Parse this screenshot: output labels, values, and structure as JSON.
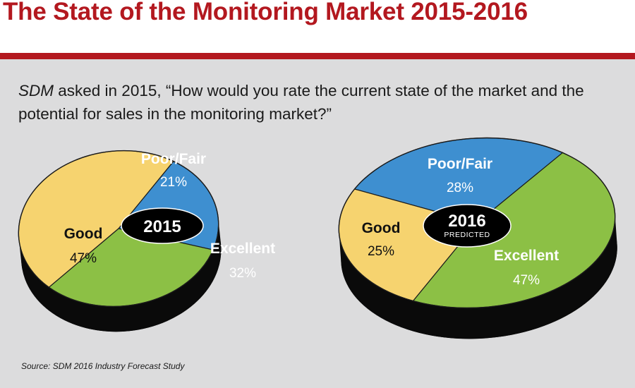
{
  "title": "The State of the Monitoring Market 2015-2016",
  "question": {
    "publication": "SDM",
    "text": " asked in 2015, “How would you rate the current state of the market and the potential for sales in the monitoring market?”"
  },
  "source": "Source: SDM 2016 Industry Forecast Study",
  "colors": {
    "title_red": "#b3181f",
    "panel_gray": "#dcdcdd",
    "good": "#f6d36f",
    "poor_fair": "#3e8fd0",
    "excellent": "#8cc045",
    "pie_side": "#0a0a0a",
    "center_label_bg": "#000000"
  },
  "chart_data": [
    {
      "type": "pie",
      "center_label": "2015",
      "center_sublabel": "",
      "slices": [
        {
          "name": "Poor/Fair",
          "value": 21,
          "label": "21%",
          "color": "#3e8fd0"
        },
        {
          "name": "Excellent",
          "value": 32,
          "label": "32%",
          "color": "#8cc045"
        },
        {
          "name": "Good",
          "value": 47,
          "label": "47%",
          "color": "#f6d36f"
        }
      ]
    },
    {
      "type": "pie",
      "center_label": "2016",
      "center_sublabel": "PREDICTED",
      "slices": [
        {
          "name": "Poor/Fair",
          "value": 28,
          "label": "28%",
          "color": "#3e8fd0"
        },
        {
          "name": "Excellent",
          "value": 47,
          "label": "47%",
          "color": "#8cc045"
        },
        {
          "name": "Good",
          "value": 25,
          "label": "25%",
          "color": "#f6d36f"
        }
      ]
    }
  ]
}
